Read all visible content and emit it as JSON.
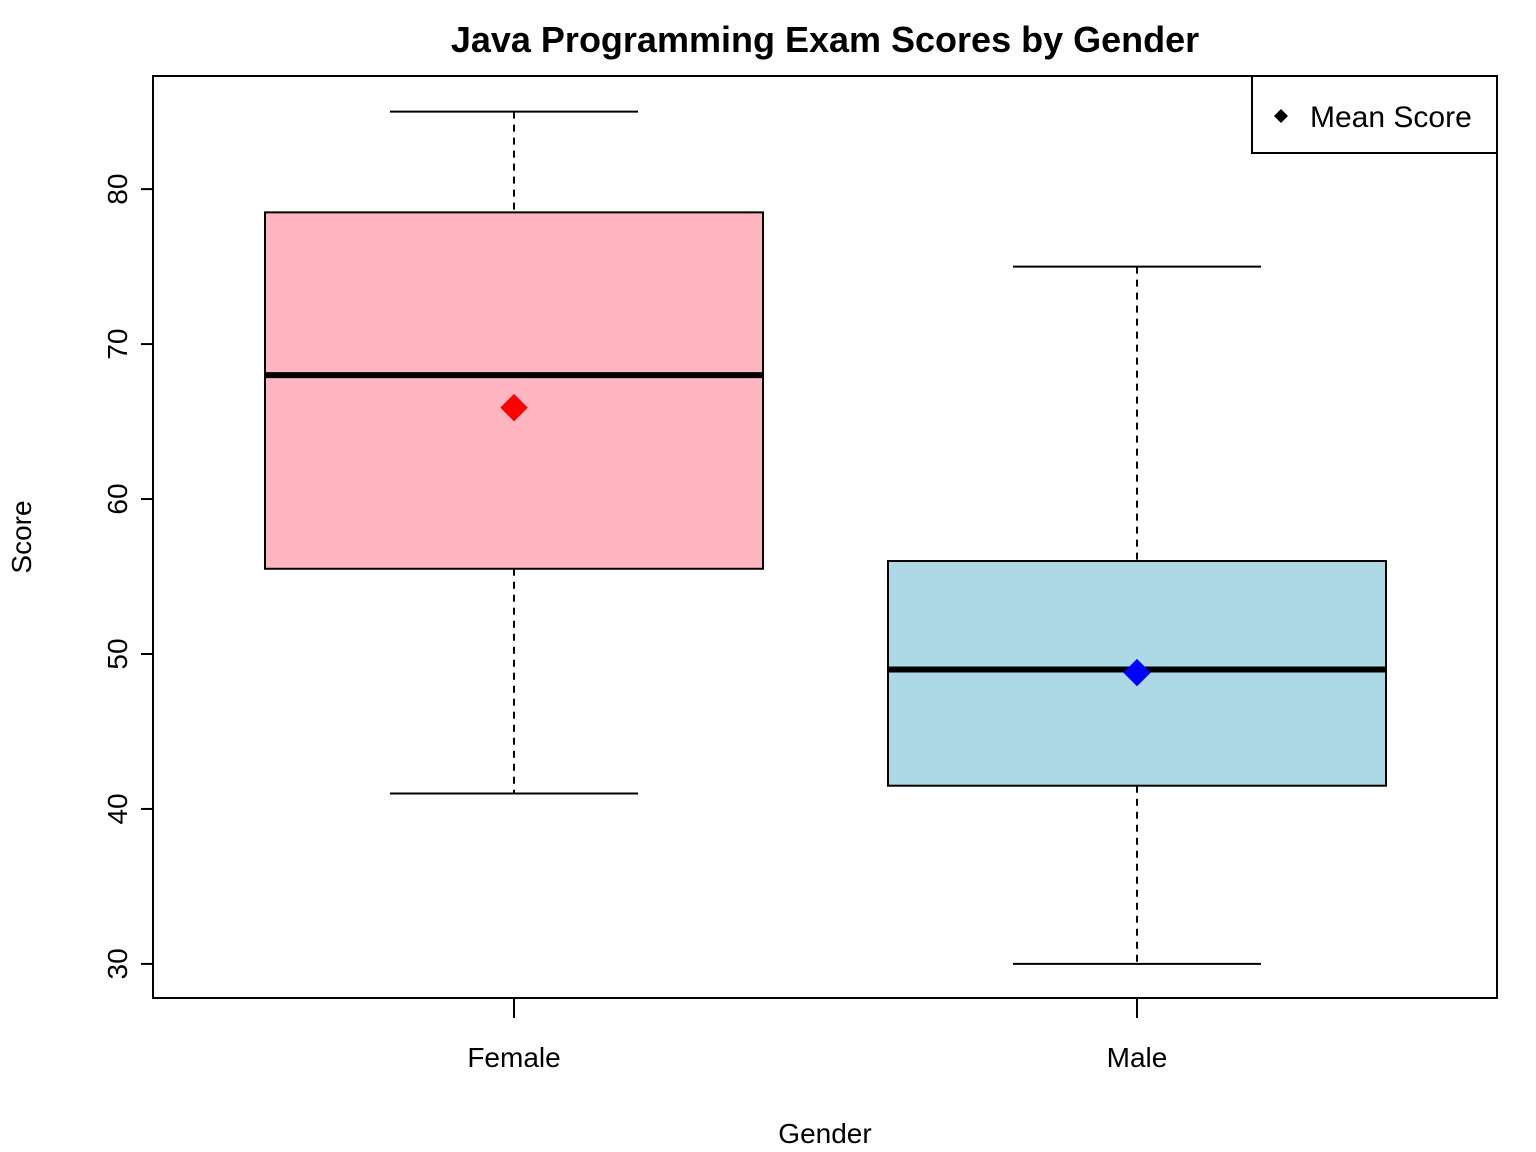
{
  "chart_data": {
    "type": "box",
    "title": "Java Programming Exam Scores by Gender",
    "xlabel": "Gender",
    "ylabel": "Score",
    "ylim": [
      27.8,
      87.3
    ],
    "yticks": [
      30,
      40,
      50,
      60,
      70,
      80
    ],
    "categories": [
      "Female",
      "Male"
    ],
    "boxes": [
      {
        "category": "Female",
        "min": 41,
        "q1": 55.5,
        "median": 68,
        "q3": 78.5,
        "max": 85,
        "mean": 65.9,
        "fill": "#FFB6C1",
        "mean_color": "#FF0000"
      },
      {
        "category": "Male",
        "min": 30,
        "q1": 41.5,
        "median": 49,
        "q3": 56,
        "max": 75,
        "mean": 48.8,
        "fill": "#ADD8E6",
        "mean_color": "#0000FF"
      }
    ],
    "legend": {
      "position": "top-right",
      "entries": [
        {
          "label": "Mean Score",
          "marker": "diamond"
        }
      ]
    },
    "grid": false
  }
}
